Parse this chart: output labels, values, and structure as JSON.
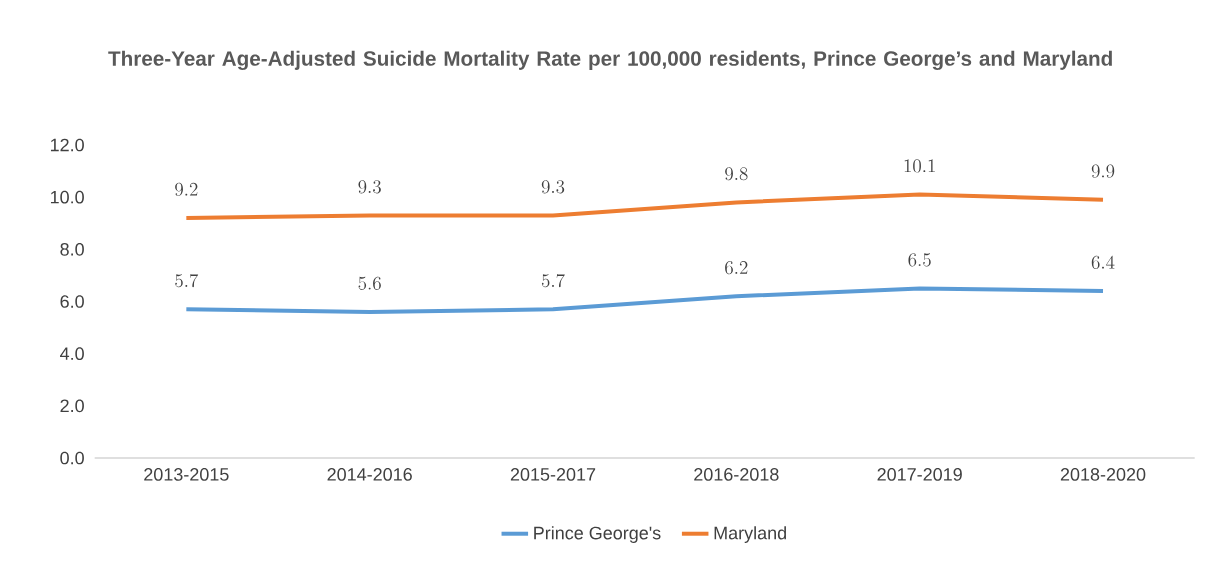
{
  "chart_data": {
    "type": "line",
    "title": "Three-Year Age-Adjusted Suicide Mortality Rate per 100,000 residents, Prince George’s and Maryland",
    "categories": [
      "2013-2015",
      "2014-2016",
      "2015-2017",
      "2016-2018",
      "2017-2019",
      "2018-2020"
    ],
    "series": [
      {
        "name": "Prince George's",
        "color": "#5b9bd5",
        "values": [
          5.7,
          5.6,
          5.7,
          6.2,
          6.5,
          6.4
        ]
      },
      {
        "name": "Maryland",
        "color": "#ed7d31",
        "values": [
          9.2,
          9.3,
          9.3,
          9.8,
          10.1,
          9.9
        ]
      }
    ],
    "ylim": [
      0,
      12
    ],
    "yticks": [
      {
        "value": 0,
        "label": "0.0"
      },
      {
        "value": 2,
        "label": "2.0"
      },
      {
        "value": 4,
        "label": "4.0"
      },
      {
        "value": 6,
        "label": "6.0"
      },
      {
        "value": 8,
        "label": "8.0"
      },
      {
        "value": 10,
        "label": "10.0"
      },
      {
        "value": 12,
        "label": "12.0"
      }
    ],
    "data_labels": true,
    "legend": "bottom",
    "marker": "none",
    "grid": false
  }
}
